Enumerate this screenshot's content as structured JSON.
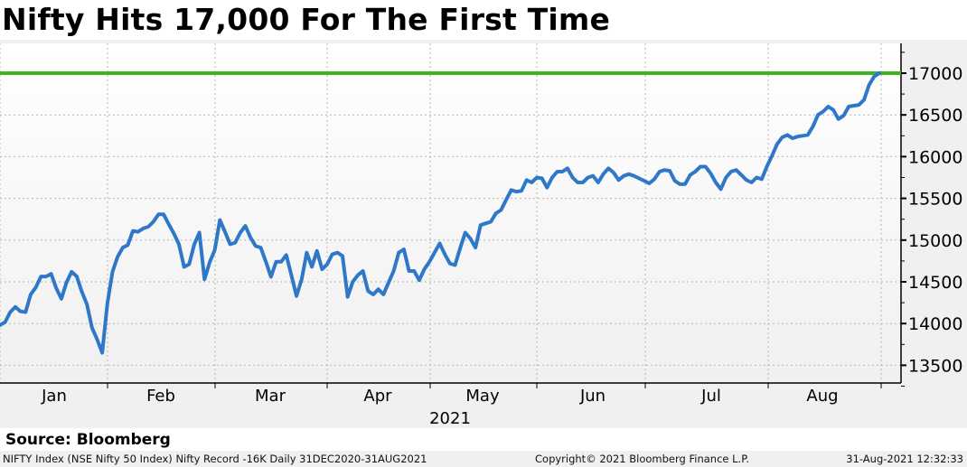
{
  "title": "Nifty Hits 17,000 For The First Time",
  "source": "Source: Bloomberg",
  "footer": {
    "left": "NIFTY Index (NSE Nifty 50 Index) Nifty Record -16K  Daily 31DEC2020-31AUG2021",
    "middle": "Copyright© 2021 Bloomberg Finance L.P.",
    "right": "31-Aug-2021 12:32:33"
  },
  "colors": {
    "line": "#2f78c8",
    "record_line": "#3cb521",
    "plot_bg_top": "#ffffff",
    "plot_bg_bottom": "#f0f0f0",
    "grid": "#b4b4b4"
  },
  "chart_data": {
    "type": "line",
    "title": "Nifty Hits 17,000 For The First Time",
    "xlabel": "2021",
    "ylabel": "",
    "ylim": [
      13250,
      17350
    ],
    "yticks": [
      13500,
      14000,
      14500,
      15000,
      15500,
      16000,
      16500,
      17000
    ],
    "x_tick_labels": [
      "Jan",
      "Feb",
      "Mar",
      "Apr",
      "May",
      "Jun",
      "Jul",
      "Aug"
    ],
    "x_range": [
      "31DEC2020",
      "31AUG2021"
    ],
    "grid": true,
    "y_axis_position": "right",
    "legend": "none",
    "annotations": [
      {
        "type": "horizontal_line",
        "label": "Nifty Record",
        "value": 17000,
        "color": "#3cb521"
      }
    ],
    "series": [
      {
        "name": "NIFTY Index (NSE Nifty 50 Index)",
        "frequency": "Daily",
        "points_day_value": [
          [
            0,
            13982
          ],
          [
            1,
            14018
          ],
          [
            2,
            14137
          ],
          [
            3,
            14199
          ],
          [
            4,
            14146
          ],
          [
            5,
            14137
          ],
          [
            6,
            14347
          ],
          [
            7,
            14433
          ],
          [
            8,
            14564
          ],
          [
            9,
            14564
          ],
          [
            10,
            14595
          ],
          [
            11,
            14425
          ],
          [
            12,
            14296
          ],
          [
            13,
            14490
          ],
          [
            14,
            14620
          ],
          [
            15,
            14565
          ],
          [
            16,
            14382
          ],
          [
            17,
            14230
          ],
          [
            18,
            13950
          ],
          [
            19,
            13810
          ],
          [
            20,
            13650
          ],
          [
            21,
            14240
          ],
          [
            22,
            14620
          ],
          [
            23,
            14800
          ],
          [
            24,
            14910
          ],
          [
            25,
            14940
          ],
          [
            26,
            15110
          ],
          [
            27,
            15100
          ],
          [
            28,
            15140
          ],
          [
            29,
            15160
          ],
          [
            30,
            15220
          ],
          [
            31,
            15310
          ],
          [
            32,
            15310
          ],
          [
            33,
            15190
          ],
          [
            34,
            15080
          ],
          [
            35,
            14950
          ],
          [
            36,
            14680
          ],
          [
            37,
            14710
          ],
          [
            38,
            14950
          ],
          [
            39,
            15090
          ],
          [
            40,
            14530
          ],
          [
            41,
            14730
          ],
          [
            42,
            14880
          ],
          [
            43,
            15240
          ],
          [
            44,
            15100
          ],
          [
            45,
            14950
          ],
          [
            46,
            14970
          ],
          [
            47,
            15090
          ],
          [
            48,
            15170
          ],
          [
            49,
            15030
          ],
          [
            50,
            14930
          ],
          [
            51,
            14910
          ],
          [
            52,
            14740
          ],
          [
            53,
            14560
          ],
          [
            54,
            14740
          ],
          [
            55,
            14740
          ],
          [
            56,
            14820
          ],
          [
            57,
            14580
          ],
          [
            58,
            14330
          ],
          [
            59,
            14530
          ],
          [
            60,
            14850
          ],
          [
            61,
            14680
          ],
          [
            62,
            14870
          ],
          [
            63,
            14650
          ],
          [
            64,
            14710
          ],
          [
            65,
            14830
          ],
          [
            66,
            14850
          ],
          [
            67,
            14810
          ],
          [
            68,
            14320
          ],
          [
            69,
            14500
          ],
          [
            70,
            14580
          ],
          [
            71,
            14630
          ],
          [
            72,
            14390
          ],
          [
            73,
            14350
          ],
          [
            74,
            14410
          ],
          [
            75,
            14350
          ],
          [
            76,
            14490
          ],
          [
            77,
            14630
          ],
          [
            78,
            14850
          ],
          [
            79,
            14890
          ],
          [
            80,
            14630
          ],
          [
            81,
            14630
          ],
          [
            82,
            14520
          ],
          [
            83,
            14650
          ],
          [
            84,
            14740
          ],
          [
            85,
            14850
          ],
          [
            86,
            14960
          ],
          [
            87,
            14830
          ],
          [
            88,
            14720
          ],
          [
            89,
            14700
          ],
          [
            90,
            14900
          ],
          [
            91,
            15090
          ],
          [
            92,
            15020
          ],
          [
            93,
            14910
          ],
          [
            94,
            15180
          ],
          [
            95,
            15200
          ],
          [
            96,
            15220
          ],
          [
            97,
            15320
          ],
          [
            98,
            15360
          ],
          [
            99,
            15480
          ],
          [
            100,
            15600
          ],
          [
            101,
            15580
          ],
          [
            102,
            15590
          ],
          [
            103,
            15720
          ],
          [
            104,
            15690
          ],
          [
            105,
            15750
          ],
          [
            106,
            15740
          ],
          [
            107,
            15630
          ],
          [
            108,
            15750
          ],
          [
            109,
            15820
          ],
          [
            110,
            15820
          ],
          [
            111,
            15860
          ],
          [
            112,
            15750
          ],
          [
            113,
            15690
          ],
          [
            114,
            15690
          ],
          [
            115,
            15750
          ],
          [
            116,
            15770
          ],
          [
            117,
            15690
          ],
          [
            118,
            15790
          ],
          [
            119,
            15860
          ],
          [
            120,
            15810
          ],
          [
            121,
            15720
          ],
          [
            122,
            15770
          ],
          [
            123,
            15790
          ],
          [
            124,
            15770
          ],
          [
            125,
            15740
          ],
          [
            126,
            15710
          ],
          [
            127,
            15680
          ],
          [
            128,
            15730
          ],
          [
            129,
            15820
          ],
          [
            130,
            15840
          ],
          [
            131,
            15830
          ],
          [
            132,
            15710
          ],
          [
            133,
            15670
          ],
          [
            134,
            15670
          ],
          [
            135,
            15780
          ],
          [
            136,
            15820
          ],
          [
            137,
            15880
          ],
          [
            138,
            15880
          ],
          [
            139,
            15800
          ],
          [
            140,
            15690
          ],
          [
            141,
            15610
          ],
          [
            142,
            15750
          ],
          [
            143,
            15820
          ],
          [
            144,
            15840
          ],
          [
            145,
            15780
          ],
          [
            146,
            15720
          ],
          [
            147,
            15690
          ],
          [
            148,
            15750
          ],
          [
            149,
            15730
          ],
          [
            150,
            15880
          ],
          [
            151,
            16010
          ],
          [
            152,
            16150
          ],
          [
            153,
            16230
          ],
          [
            154,
            16260
          ],
          [
            155,
            16220
          ],
          [
            156,
            16240
          ],
          [
            157,
            16250
          ],
          [
            158,
            16260
          ],
          [
            159,
            16360
          ],
          [
            160,
            16500
          ],
          [
            161,
            16540
          ],
          [
            162,
            16600
          ],
          [
            163,
            16560
          ],
          [
            164,
            16450
          ],
          [
            165,
            16490
          ],
          [
            166,
            16600
          ],
          [
            167,
            16610
          ],
          [
            168,
            16620
          ],
          [
            169,
            16680
          ],
          [
            170,
            16860
          ],
          [
            171,
            16960
          ],
          [
            172,
            17000
          ]
        ]
      }
    ]
  }
}
